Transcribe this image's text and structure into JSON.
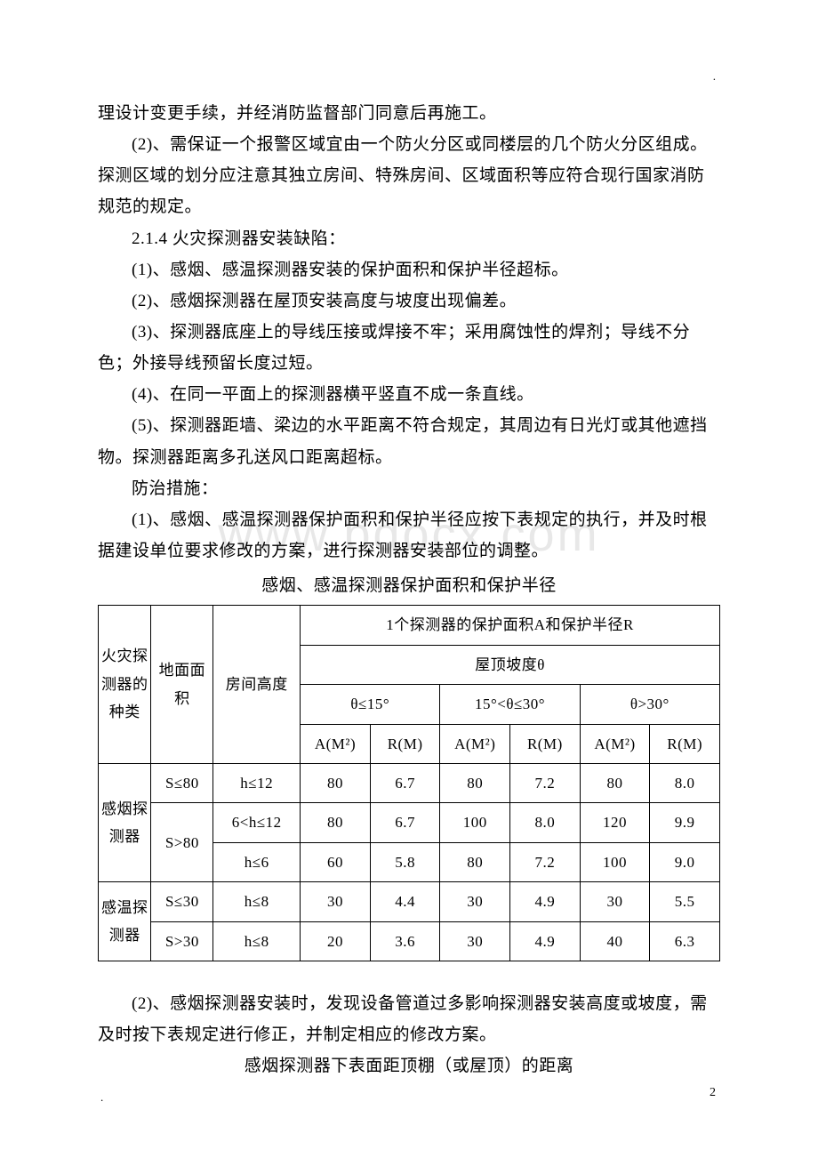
{
  "marks": {
    "top_right_dot": ".",
    "bottom_left_dot": ".",
    "page_number": "2"
  },
  "watermark": "www.bdocx.com",
  "paragraphs": {
    "p1": "理设计变更手续，并经消防监督部门同意后再施工。",
    "p2": "(2)、需保证一个报警区域宜由一个防火分区或同楼层的几个防火分区组成。探测区域的划分应注意其独立房间、特殊房间、区域面积等应符合现行国家消防规范的规定。",
    "p3": "2.1.4 火灾探测器安装缺陷：",
    "p4": "(1)、感烟、感温探测器安装的保护面积和保护半径超标。",
    "p5": "(2)、感烟探测器在屋顶安装高度与坡度出现偏差。",
    "p6": "(3)、探测器底座上的导线压接或焊接不牢；采用腐蚀性的焊剂；导线不分色；外接导线预留长度过短。",
    "p7": "(4)、在同一平面上的探测器横平竖直不成一条直线。",
    "p8": "(5)、探测器距墙、梁边的水平距离不符合规定，其周边有日光灯或其他遮挡物。探测器距离多孔送风口距离超标。",
    "p9": "防治措施：",
    "p10": "(1)、感烟、感温探测器保护面积和保护半径应按下表规定的执行，并及时根据建设单位要求修改的方案，进行探测器安装部位的调整。",
    "table1_title": "感烟、感温探测器保护面积和保护半径",
    "p11": "(2)、感烟探测器安装时，发现设备管道过多影响探测器安装高度或坡度，需及时按下表规定进行修正，并制定相应的修改方案。",
    "p12": "感烟探测器下表面距顶棚（或屋顶）的距离"
  },
  "table1": {
    "headers": {
      "type": "火灾探测器的种类",
      "area": "地面面积",
      "height": "房间高度",
      "main": "1个探测器的保护面积A和保护半径R",
      "slope": "屋顶坡度θ",
      "slope1": "θ≤15°",
      "slope2": "15°<θ≤30°",
      "slope3": "θ>30°",
      "A": "A(M²)",
      "R": "R(M)"
    },
    "rows": [
      {
        "type": "感烟探测器",
        "type_rowspan": 3,
        "area": "S≤80",
        "area_rowspan": 1,
        "height": "h≤12",
        "a1": "80",
        "r1": "6.7",
        "a2": "80",
        "r2": "7.2",
        "a3": "80",
        "r3": "8.0"
      },
      {
        "area": "S>80",
        "area_rowspan": 2,
        "height": "6<h≤12",
        "a1": "80",
        "r1": "6.7",
        "a2": "100",
        "r2": "8.0",
        "a3": "120",
        "r3": "9.9"
      },
      {
        "height": "h≤6",
        "a1": "60",
        "r1": "5.8",
        "a2": "80",
        "r2": "7.2",
        "a3": "100",
        "r3": "9.0"
      },
      {
        "type": "感温探测器",
        "type_rowspan": 2,
        "area": "S≤30",
        "area_rowspan": 1,
        "height": "h≤8",
        "a1": "30",
        "r1": "4.4",
        "a2": "30",
        "r2": "4.9",
        "a3": "30",
        "r3": "5.5"
      },
      {
        "area": "S>30",
        "area_rowspan": 1,
        "height": "h≤8",
        "a1": "20",
        "r1": "3.6",
        "a2": "30",
        "r2": "4.9",
        "a3": "40",
        "r3": "6.3"
      }
    ]
  },
  "colors": {
    "text": "#000000",
    "background": "#ffffff",
    "border": "#000000",
    "watermark": "#e8e8e8"
  },
  "typography": {
    "body_fontsize_pt": 14,
    "body_line_height": 1.85,
    "table_fontsize_pt": 13,
    "font_family": "SimSun"
  }
}
